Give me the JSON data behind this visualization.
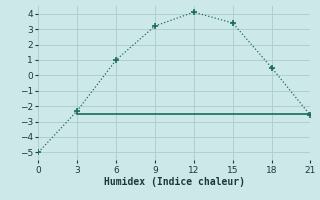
{
  "xlabel": "Humidex (Indice chaleur)",
  "line1_x": [
    0,
    3,
    6,
    9,
    12,
    15,
    18,
    21
  ],
  "line1_y": [
    -5,
    -2.3,
    1,
    3.2,
    4.1,
    3.4,
    0.5,
    -2.6
  ],
  "line2_x": [
    3,
    21
  ],
  "line2_y": [
    -2.5,
    -2.5
  ],
  "xlim": [
    0,
    21
  ],
  "ylim": [
    -5.5,
    4.5
  ],
  "xticks": [
    0,
    3,
    6,
    9,
    12,
    15,
    18,
    21
  ],
  "yticks": [
    -5,
    -4,
    -3,
    -2,
    -1,
    0,
    1,
    2,
    3,
    4
  ],
  "line_color": "#1a6b5a",
  "bg_color": "#cde8e8",
  "grid_color": "#b0d0d0",
  "marker": "+",
  "markersize": 5,
  "marker_lw": 1.2,
  "linewidth": 0.9,
  "flat_linewidth": 1.2,
  "label_fontsize": 7,
  "tick_fontsize": 6.5
}
